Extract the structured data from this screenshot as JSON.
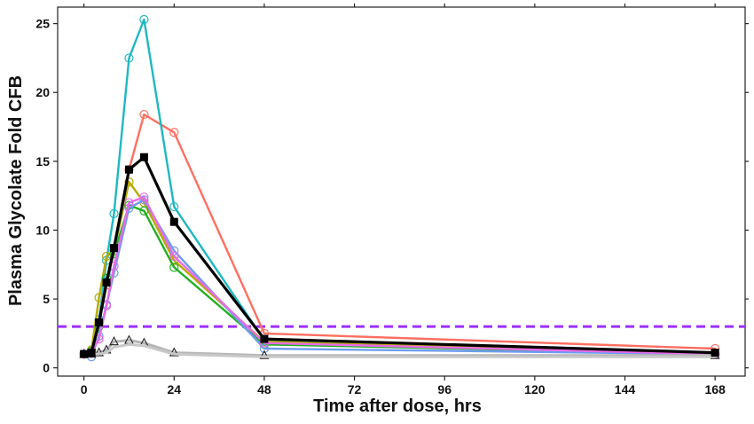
{
  "chart_data": {
    "type": "line",
    "xlabel": "Time after dose, hrs",
    "ylabel": "Plasma Glycolate Fold CFB",
    "xlim": [
      -7,
      176
    ],
    "ylim": [
      -0.6,
      26.2
    ],
    "xticks": [
      0,
      24,
      48,
      72,
      96,
      120,
      144,
      168
    ],
    "yticks": [
      0,
      5,
      10,
      15,
      20,
      25
    ],
    "x_tick_labels": [
      "0",
      "24",
      "48",
      "72",
      "96",
      "120",
      "144",
      "168"
    ],
    "y_tick_labels": [
      "0",
      "5",
      "10",
      "15",
      "20",
      "25"
    ],
    "grid": false,
    "legend": "none",
    "reference_line": {
      "y": 3,
      "color": "#9b30ff",
      "style": "dashed"
    },
    "series": [
      {
        "color": "#ff6f61",
        "marker": "open-circle",
        "points": [
          [
            0,
            1.0
          ],
          [
            2,
            1.2
          ],
          [
            4,
            3.2
          ],
          [
            6,
            6.0
          ],
          [
            8,
            8.5
          ],
          [
            12,
            14.4
          ],
          [
            16,
            18.4
          ],
          [
            24,
            17.1
          ],
          [
            48,
            2.5
          ],
          [
            168,
            1.4
          ]
        ]
      },
      {
        "color": "#1fb8c2",
        "marker": "open-circle",
        "points": [
          [
            0,
            1.0
          ],
          [
            2,
            1.3
          ],
          [
            4,
            3.5
          ],
          [
            6,
            7.8
          ],
          [
            8,
            11.2
          ],
          [
            12,
            22.5
          ],
          [
            16,
            25.3
          ],
          [
            24,
            11.7
          ],
          [
            48,
            2.0
          ],
          [
            168,
            1.0
          ]
        ]
      },
      {
        "color": "#b8a800",
        "marker": "open-circle",
        "points": [
          [
            0,
            1.0
          ],
          [
            2,
            1.3
          ],
          [
            4,
            5.1
          ],
          [
            6,
            8.1
          ],
          [
            8,
            8.5
          ],
          [
            12,
            13.5
          ],
          [
            16,
            12.0
          ],
          [
            24,
            7.8
          ],
          [
            48,
            1.9
          ],
          [
            168,
            1.0
          ]
        ]
      },
      {
        "color": "#22b022",
        "marker": "open-circle",
        "points": [
          [
            0,
            1.0
          ],
          [
            2,
            1.2
          ],
          [
            4,
            3.0
          ],
          [
            6,
            6.5
          ],
          [
            8,
            8.3
          ],
          [
            12,
            11.8
          ],
          [
            16,
            11.4
          ],
          [
            24,
            7.3
          ],
          [
            48,
            1.7
          ],
          [
            168,
            1.0
          ]
        ]
      },
      {
        "color": "#6d9cf0",
        "marker": "open-circle",
        "points": [
          [
            0,
            1.0
          ],
          [
            2,
            0.8
          ],
          [
            4,
            2.3
          ],
          [
            6,
            4.6
          ],
          [
            8,
            6.9
          ],
          [
            12,
            11.6
          ],
          [
            16,
            12.2
          ],
          [
            24,
            8.5
          ],
          [
            48,
            1.4
          ],
          [
            168,
            1.0
          ]
        ]
      },
      {
        "color": "#e96ae8",
        "marker": "open-circle",
        "points": [
          [
            0,
            1.0
          ],
          [
            2,
            1.1
          ],
          [
            4,
            2.1
          ],
          [
            6,
            4.5
          ],
          [
            8,
            7.4
          ],
          [
            12,
            12.0
          ],
          [
            16,
            12.4
          ],
          [
            24,
            8.1
          ],
          [
            48,
            1.8
          ],
          [
            168,
            1.0
          ]
        ]
      },
      {
        "color": "#b5b5b5",
        "marker": "open-triangle",
        "points": [
          [
            0,
            1.0
          ],
          [
            2,
            1.0
          ],
          [
            4,
            1.1
          ],
          [
            6,
            1.3
          ],
          [
            8,
            1.9
          ],
          [
            12,
            2.0
          ],
          [
            16,
            1.8
          ],
          [
            24,
            1.1
          ],
          [
            48,
            0.9
          ],
          [
            168,
            0.9
          ]
        ]
      },
      {
        "color": "#c8c8c8",
        "marker": "none",
        "points": [
          [
            0,
            1.0
          ],
          [
            2,
            1.0
          ],
          [
            4,
            1.0
          ],
          [
            6,
            1.1
          ],
          [
            8,
            1.5
          ],
          [
            12,
            1.7
          ],
          [
            16,
            1.6
          ],
          [
            24,
            1.0
          ],
          [
            48,
            0.8
          ],
          [
            168,
            0.8
          ]
        ]
      },
      {
        "color": "#000000",
        "marker": "filled-square",
        "points": [
          [
            0,
            1.0
          ],
          [
            2,
            1.1
          ],
          [
            4,
            3.3
          ],
          [
            6,
            6.2
          ],
          [
            8,
            8.7
          ],
          [
            12,
            14.4
          ],
          [
            16,
            15.3
          ],
          [
            24,
            10.6
          ],
          [
            48,
            2.1
          ],
          [
            168,
            1.1
          ]
        ]
      }
    ]
  }
}
